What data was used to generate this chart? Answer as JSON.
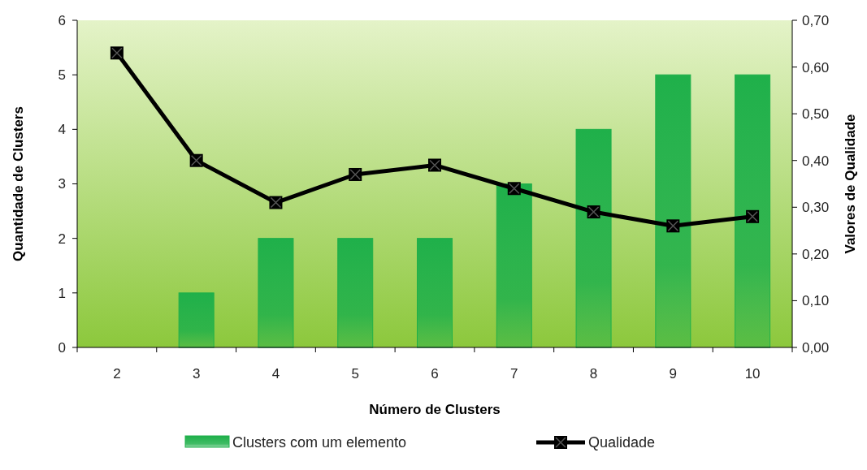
{
  "chart_data": {
    "type": "bar",
    "xlabel": "Número de Clusters",
    "ylabel": "Quantidade de Clusters",
    "y2label": "Valores de Qualidade",
    "categories": [
      "2",
      "3",
      "4",
      "5",
      "6",
      "7",
      "8",
      "9",
      "10"
    ],
    "series": [
      {
        "name": "Clusters com um elemento",
        "color": "#1fb04a",
        "values": [
          0,
          1,
          2,
          2,
          2,
          3,
          4,
          5,
          5
        ]
      },
      {
        "name": "Qualidade",
        "type": "line",
        "axis": "y2",
        "color": "#000000",
        "marker": "square",
        "values": [
          0.63,
          0.4,
          0.31,
          0.37,
          0.39,
          0.34,
          0.29,
          0.26,
          0.28
        ]
      }
    ],
    "ylim": [
      0,
      6
    ],
    "yticks": [
      0,
      1,
      2,
      3,
      4,
      5,
      6
    ],
    "y2lim": [
      0,
      0.7
    ],
    "y2ticks": [
      {
        "value": 0,
        "label": "0,00"
      },
      {
        "value": 0.1,
        "label": "0,10"
      },
      {
        "value": 0.2,
        "label": "0,20"
      },
      {
        "value": 0.3,
        "label": "0,30"
      },
      {
        "value": 0.4,
        "label": "0,40"
      },
      {
        "value": 0.5,
        "label": "0,50"
      },
      {
        "value": 0.6,
        "label": "0,60"
      },
      {
        "value": 0.7,
        "label": "0,70"
      }
    ],
    "grid": false,
    "legend": "bottom"
  }
}
